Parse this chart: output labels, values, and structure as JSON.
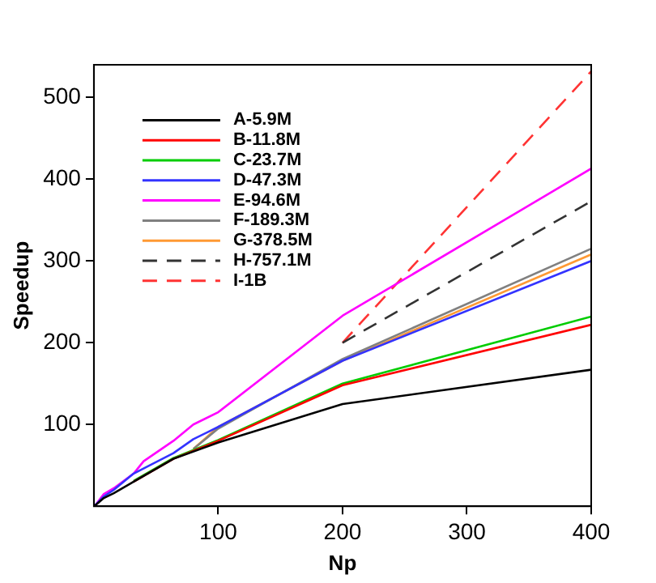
{
  "chart_data": {
    "type": "line",
    "xlabel": "Np",
    "ylabel": "Speedup",
    "xlim": [
      0,
      400
    ],
    "ylim": [
      0,
      540
    ],
    "xticks": [
      100,
      200,
      300,
      400
    ],
    "yticks": [
      100,
      200,
      300,
      400,
      500
    ],
    "grid": false,
    "legend": "top left",
    "marker": "none",
    "series": [
      {
        "name": "A-5.9M",
        "color": "#000000",
        "x": [
          1,
          8,
          16,
          32,
          64,
          100,
          200,
          400
        ],
        "values": [
          1,
          10,
          16,
          30,
          58,
          78,
          125,
          167
        ]
      },
      {
        "name": "B-11.8M",
        "color": "#ff0000",
        "x": [
          32,
          64,
          100,
          200,
          400
        ],
        "values": [
          30,
          58,
          80,
          148,
          222
        ]
      },
      {
        "name": "C-23.7M",
        "color": "#00cc00",
        "x": [
          32,
          64,
          100,
          200,
          400
        ],
        "values": [
          31,
          59,
          81,
          150,
          232
        ]
      },
      {
        "name": "D-47.3M",
        "color": "#3333ff",
        "x": [
          1,
          8,
          16,
          32,
          64,
          80,
          100,
          200,
          400
        ],
        "values": [
          1,
          12,
          20,
          40,
          65,
          82,
          97,
          178,
          300
        ]
      },
      {
        "name": "E-94.6M",
        "color": "#ff00ff",
        "x": [
          1,
          8,
          16,
          32,
          40,
          64,
          80,
          100,
          200,
          400
        ],
        "values": [
          1,
          15,
          22,
          40,
          55,
          80,
          100,
          115,
          233,
          413
        ]
      },
      {
        "name": "F-189.3M",
        "color": "#808080",
        "x": [
          80,
          100,
          200,
          400
        ],
        "values": [
          70,
          95,
          180,
          315
        ]
      },
      {
        "name": "G-378.5M",
        "color": "#ff9933",
        "x": [
          80,
          100,
          200,
          400
        ],
        "values": [
          70,
          97,
          178,
          308
        ]
      },
      {
        "name": "H-757.1M",
        "color": "#333333",
        "line_style": "dashed",
        "x": [
          200,
          400
        ],
        "values": [
          200,
          373
        ]
      },
      {
        "name": "I-1B",
        "color": "#ff3333",
        "line_style": "dashed",
        "x": [
          200,
          400
        ],
        "values": [
          200,
          532
        ]
      }
    ]
  }
}
